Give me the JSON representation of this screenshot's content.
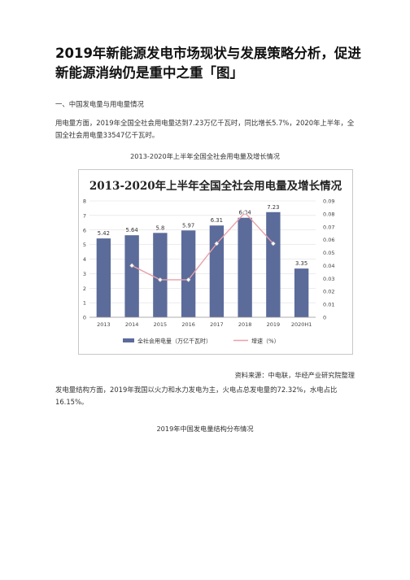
{
  "article": {
    "title": "2019年新能源发电市场现状与发展策略分析，促进新能源消纳仍是重中之重「图」",
    "section_heading": "一、中国发电量与用电量情况",
    "paragraph1": "用电量方面，2019年全国全社会用电量达到7.23万亿千瓦时，同比增长5.7%，2020年上半年，全国全社会用电量33547亿千瓦时。",
    "figure1_caption": "2013-2020年上半年全国全社会用电量及增长情况",
    "source": "资料来源：中电联，华经产业研究院整理",
    "paragraph2": "发电量结构方面，2019年我国以火力和水力发电为主，火电占总发电量的72.32%，水电占比16.15%。",
    "figure2_caption": "2019年中国发电量结构分布情况"
  },
  "chart_data": {
    "type": "bar",
    "title": "2013-2020年上半年全国全社会用电量及增长情况",
    "categories": [
      "2013",
      "2014",
      "2015",
      "2016",
      "2017",
      "2018",
      "2019",
      "2020H1"
    ],
    "series": [
      {
        "name": "全社会用电量（万亿千瓦时）",
        "type": "bar",
        "axis": "left",
        "values": [
          5.42,
          5.64,
          5.8,
          5.97,
          6.31,
          6.84,
          7.23,
          3.35
        ],
        "labels": [
          "5.42",
          "5.64",
          "5.8",
          "5.97",
          "6.31",
          "6.84",
          "7.23",
          "3.35"
        ],
        "color": "#5b6b9a"
      },
      {
        "name": "增速（%）",
        "type": "line",
        "axis": "right",
        "values": [
          null,
          0.04,
          0.029,
          0.029,
          0.057,
          0.081,
          0.057,
          null
        ],
        "color": "#e8a0a8"
      }
    ],
    "ylim": [
      0,
      8
    ],
    "yticks": [
      "0",
      "1",
      "2",
      "3",
      "4",
      "5",
      "6",
      "7",
      "8"
    ],
    "y2lim": [
      0,
      0.09
    ],
    "y2ticks": [
      "0",
      "0.01",
      "0.02",
      "0.03",
      "0.04",
      "0.05",
      "0.06",
      "0.07",
      "0.08",
      "0.09"
    ],
    "grid": true,
    "legend": "bottom"
  }
}
